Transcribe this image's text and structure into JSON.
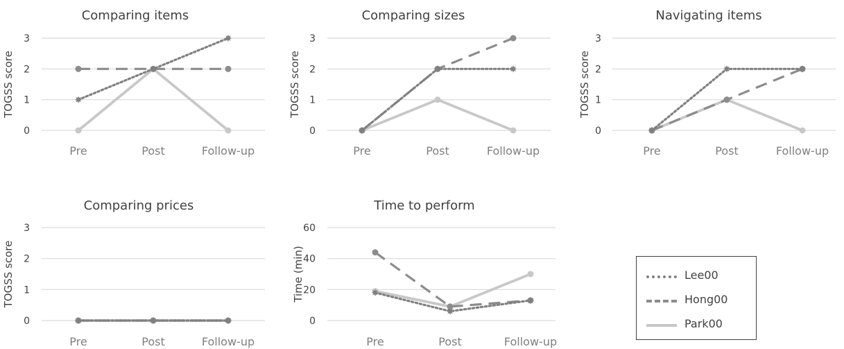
{
  "colors": {
    "Lee00": "#808080",
    "Hong00": "#8c8c8c",
    "Park00": "#c8c8c8",
    "grid": "#d9d9d9",
    "text": "#404040",
    "tick": "#7f7f7f"
  },
  "legend": {
    "items": [
      {
        "name": "Lee00",
        "style": "dotted"
      },
      {
        "name": "Hong00",
        "style": "dashed"
      },
      {
        "name": "Park00",
        "style": "solid"
      }
    ]
  },
  "chart_data": [
    {
      "type": "line",
      "title": "Comparing items",
      "ylabel": "TOGSS score",
      "categories": [
        "Pre",
        "Post",
        "Follow-up"
      ],
      "yticks": [
        0,
        1,
        2,
        3
      ],
      "ylim": [
        0,
        3
      ],
      "series": [
        {
          "name": "Lee00",
          "values": [
            1,
            2,
            3
          ]
        },
        {
          "name": "Hong00",
          "values": [
            2,
            2,
            2
          ]
        },
        {
          "name": "Park00",
          "values": [
            0,
            2,
            0
          ]
        }
      ]
    },
    {
      "type": "line",
      "title": "Comparing sizes",
      "ylabel": "TOGSS score",
      "categories": [
        "Pre",
        "Post",
        "Follow-up"
      ],
      "yticks": [
        0,
        1,
        2,
        3
      ],
      "ylim": [
        0,
        3
      ],
      "series": [
        {
          "name": "Lee00",
          "values": [
            0,
            2,
            2
          ]
        },
        {
          "name": "Hong00",
          "values": [
            0,
            2,
            3
          ]
        },
        {
          "name": "Park00",
          "values": [
            0,
            1,
            0
          ]
        }
      ]
    },
    {
      "type": "line",
      "title": "Navigating items",
      "ylabel": "TOGSS score",
      "categories": [
        "Pre",
        "Post",
        "Follow-up"
      ],
      "yticks": [
        0,
        1,
        2,
        3
      ],
      "ylim": [
        0,
        3
      ],
      "series": [
        {
          "name": "Lee00",
          "values": [
            0,
            2,
            2
          ]
        },
        {
          "name": "Hong00",
          "values": [
            0,
            1,
            2
          ]
        },
        {
          "name": "Park00",
          "values": [
            0,
            1,
            0
          ]
        }
      ]
    },
    {
      "type": "line",
      "title": "Comparing prices",
      "ylabel": "TOGSS score",
      "categories": [
        "Pre",
        "Post",
        "Follow-up"
      ],
      "yticks": [
        0,
        1,
        2,
        3
      ],
      "ylim": [
        0,
        3
      ],
      "series": [
        {
          "name": "Lee00",
          "values": [
            0,
            0,
            0
          ]
        },
        {
          "name": "Hong00",
          "values": [
            0,
            0,
            0
          ]
        },
        {
          "name": "Park00",
          "values": [
            0,
            0,
            0
          ]
        }
      ]
    },
    {
      "type": "line",
      "title": "Time to perform",
      "ylabel": "Time (min)",
      "categories": [
        "Pre",
        "Post",
        "Follow-up"
      ],
      "yticks": [
        0,
        20,
        40,
        60
      ],
      "ylim": [
        0,
        60
      ],
      "series": [
        {
          "name": "Lee00",
          "values": [
            18,
            6,
            13
          ]
        },
        {
          "name": "Hong00",
          "values": [
            44,
            9,
            13
          ]
        },
        {
          "name": "Park00",
          "values": [
            19,
            9,
            30
          ]
        }
      ]
    }
  ]
}
